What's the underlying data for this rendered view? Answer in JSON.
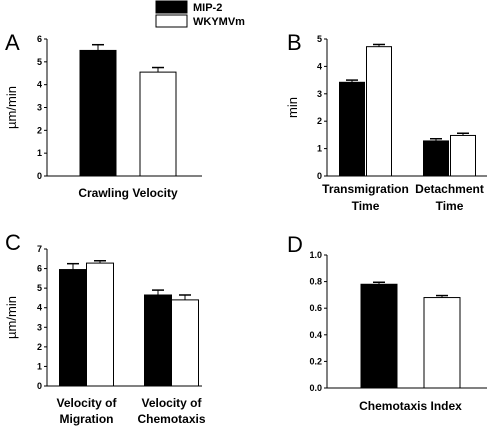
{
  "legend": {
    "series": [
      {
        "name": "MIP-2",
        "color": "#000000"
      },
      {
        "name": "WKYMVm",
        "color": "#ffffff"
      }
    ]
  },
  "chart_data": [
    {
      "panel": "A",
      "type": "bar",
      "ylabel": "µm/min",
      "ylim": [
        0,
        6
      ],
      "yticks": [
        0,
        1,
        2,
        3,
        4,
        5,
        6
      ],
      "categories": [
        [
          "Crawling Velocity"
        ]
      ],
      "series": [
        {
          "name": "MIP-2",
          "values": [
            5.5
          ],
          "errors": [
            0.25
          ]
        },
        {
          "name": "WKYMVm",
          "values": [
            4.55
          ],
          "errors": [
            0.2
          ]
        }
      ]
    },
    {
      "panel": "B",
      "type": "bar",
      "ylabel": "min",
      "ylim": [
        0,
        5
      ],
      "yticks": [
        0,
        1,
        2,
        3,
        4,
        5
      ],
      "categories": [
        [
          "Transmigration",
          "Time"
        ],
        [
          "Detachment",
          "Time"
        ]
      ],
      "series": [
        {
          "name": "MIP-2",
          "values": [
            3.42,
            1.28
          ],
          "errors": [
            0.08,
            0.08
          ]
        },
        {
          "name": "WKYMVm",
          "values": [
            4.72,
            1.48
          ],
          "errors": [
            0.08,
            0.08
          ]
        }
      ]
    },
    {
      "panel": "C",
      "type": "bar",
      "ylabel": "µm/min",
      "ylim": [
        0,
        7
      ],
      "yticks": [
        0,
        1,
        2,
        3,
        4,
        5,
        6,
        7
      ],
      "categories": [
        [
          "Velocity of",
          "Migration"
        ],
        [
          "Velocity of",
          "Chemotaxis"
        ]
      ],
      "series": [
        {
          "name": "MIP-2",
          "values": [
            5.95,
            4.65
          ],
          "errors": [
            0.3,
            0.25
          ]
        },
        {
          "name": "WKYMVm",
          "values": [
            6.28,
            4.4
          ],
          "errors": [
            0.12,
            0.25
          ]
        }
      ]
    },
    {
      "panel": "D",
      "type": "bar",
      "ylabel": "",
      "ylim": [
        0,
        1.0
      ],
      "yticks": [
        "0.0",
        "0.2",
        "0.4",
        "0.6",
        "0.8",
        "1.0"
      ],
      "categories": [
        [
          "Chemotaxis Index"
        ]
      ],
      "series": [
        {
          "name": "MIP-2",
          "values": [
            0.78
          ],
          "errors": [
            0.015
          ]
        },
        {
          "name": "WKYMVm",
          "values": [
            0.68
          ],
          "errors": [
            0.015
          ]
        }
      ]
    }
  ]
}
